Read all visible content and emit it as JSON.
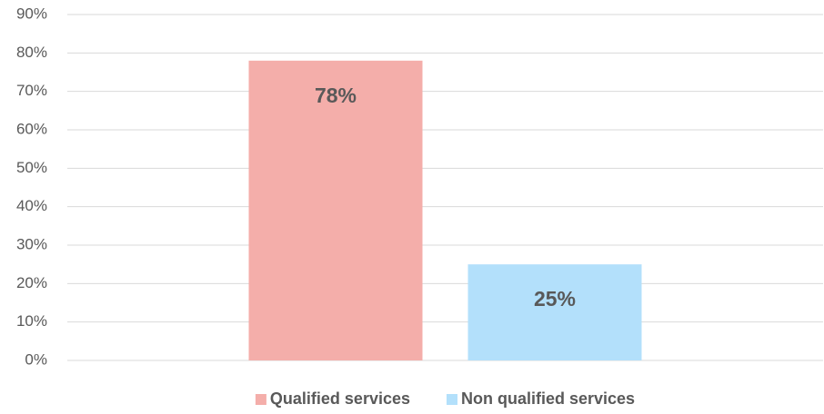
{
  "chart_data": {
    "type": "bar",
    "categories": [
      null
    ],
    "series": [
      {
        "name": "Qualified services",
        "color": "#f4aeaa",
        "values": [
          78
        ],
        "value_labels": [
          "78%"
        ]
      },
      {
        "name": "Non qualified services",
        "color": "#b3e0fb",
        "values": [
          25
        ],
        "value_labels": [
          "25%"
        ]
      }
    ],
    "ylim": [
      0,
      90
    ],
    "yticks": [
      {
        "value": 0,
        "label": "0%"
      },
      {
        "value": 10,
        "label": "10%"
      },
      {
        "value": 20,
        "label": "20%"
      },
      {
        "value": 30,
        "label": "30%"
      },
      {
        "value": 40,
        "label": "40%"
      },
      {
        "value": 50,
        "label": "50%"
      },
      {
        "value": 60,
        "label": "60%"
      },
      {
        "value": 70,
        "label": "70%"
      },
      {
        "value": 80,
        "label": "80%"
      },
      {
        "value": 90,
        "label": "90%"
      }
    ],
    "grid": true,
    "legend": "bottom"
  }
}
